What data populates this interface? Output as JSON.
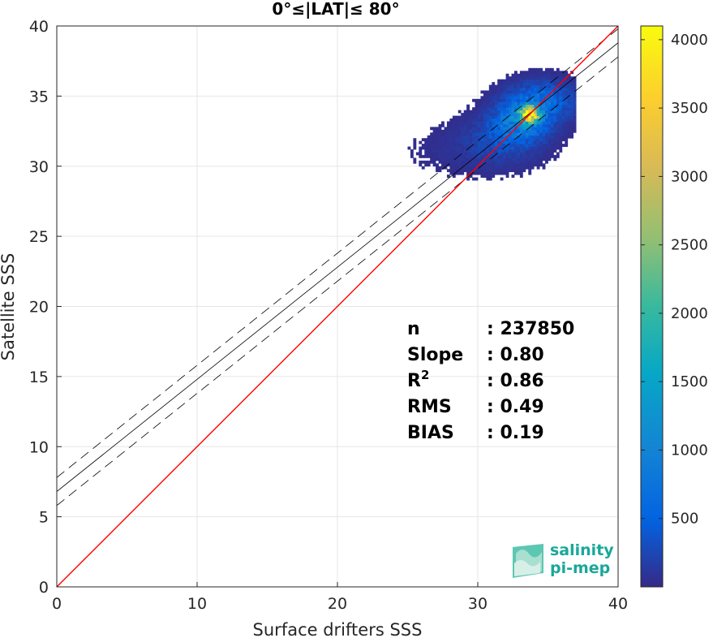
{
  "chart_data": {
    "type": "heatmap",
    "title": "0°≤|LAT|≤ 80°",
    "xlabel": "Surface drifters SSS",
    "ylabel": "Satellite SSS",
    "xlim": [
      0,
      40
    ],
    "ylim": [
      0,
      40
    ],
    "x_ticks": [
      0,
      10,
      20,
      30,
      40
    ],
    "y_ticks": [
      0,
      5,
      10,
      15,
      20,
      25,
      30,
      35,
      40
    ],
    "grid": true,
    "colorbar": {
      "range": [
        0,
        4100
      ],
      "ticks": [
        500,
        1000,
        1500,
        2000,
        2500,
        3000,
        3500,
        4000
      ],
      "colormap": "parula"
    },
    "lines": {
      "identity": {
        "slope": 1,
        "intercept": 0,
        "color": "#ff0000"
      },
      "fit": {
        "slope": 0.8,
        "intercept": 6.8,
        "color": "#000000"
      },
      "fit_upper": {
        "slope": 0.8,
        "intercept": 7.8,
        "color": "#000000",
        "dash": true
      },
      "fit_lower": {
        "slope": 0.8,
        "intercept": 5.8,
        "color": "#000000",
        "dash": true
      }
    },
    "density_blobs": [
      {
        "cx": 33.6,
        "cy": 33.6,
        "sx": 0.45,
        "sy": 0.35,
        "peak": 4100
      },
      {
        "cx": 33.0,
        "cy": 33.1,
        "sx": 1.3,
        "sy": 0.9,
        "peak": 900
      },
      {
        "cx": 34.5,
        "cy": 34.6,
        "sx": 1.6,
        "sy": 0.9,
        "peak": 600
      },
      {
        "cx": 31.5,
        "cy": 31.8,
        "sx": 1.8,
        "sy": 1.1,
        "peak": 250
      },
      {
        "cx": 29.5,
        "cy": 31.0,
        "sx": 3.2,
        "sy": 1.2,
        "peak": 60
      }
    ],
    "stats": [
      {
        "label": "n",
        "value": ": 237850"
      },
      {
        "label": "Slope",
        "value": ": 0.80"
      },
      {
        "label": "R",
        "sup": "2",
        "value": ": 0.86"
      },
      {
        "label": "RMS",
        "value": ": 0.49"
      },
      {
        "label": "BIAS",
        "value": ": 0.19"
      }
    ]
  },
  "logo": {
    "line1": "salinity",
    "line2": "pi-mep"
  }
}
